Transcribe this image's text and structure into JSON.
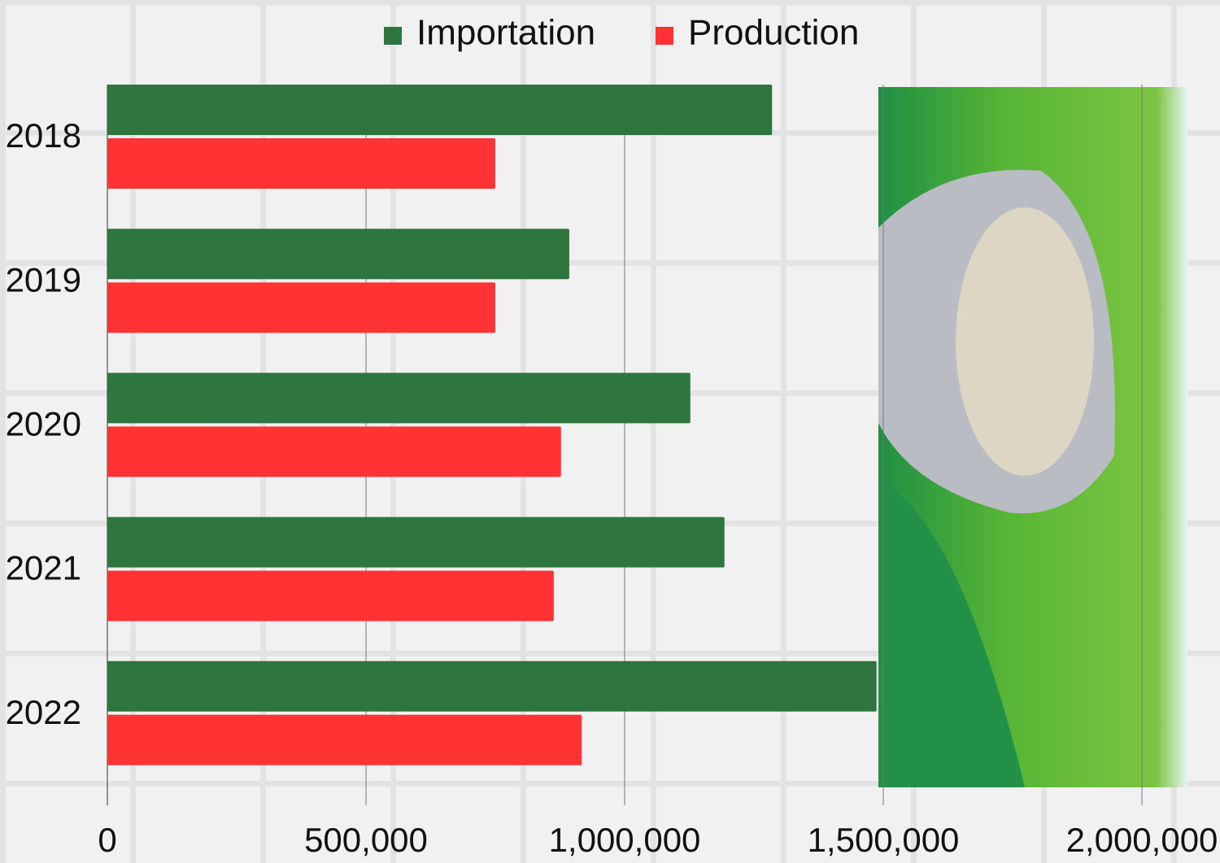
{
  "chart_data": {
    "type": "hbar",
    "categories": [
      "2018",
      "2019",
      "2020",
      "2021",
      "2022"
    ],
    "series": [
      {
        "name": "Importation",
        "color": "#2e7540",
        "values": [
          1285000,
          893000,
          1127000,
          1193000,
          1487000
        ]
      },
      {
        "name": "Production",
        "color": "#ff3333",
        "values": [
          750000,
          750000,
          877000,
          863000,
          917000
        ]
      }
    ],
    "xlim": [
      0,
      2000000
    ],
    "xticks": [
      0,
      {
        "value": 500000,
        "label": "500,000"
      },
      {
        "value": 1000000,
        "label": "1,000,000"
      },
      {
        "value": 1500000,
        "label": "1,500,000"
      },
      {
        "value": 2000000,
        "label": "2,000,000"
      }
    ],
    "grid": true
  }
}
